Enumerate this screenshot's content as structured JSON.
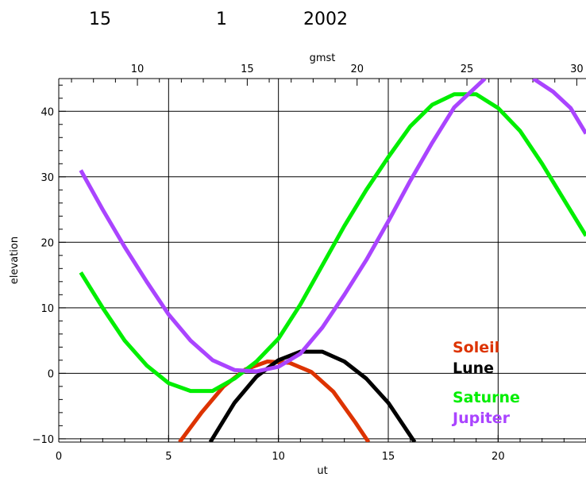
{
  "header": {
    "day": "15",
    "month": "1",
    "year": "2002"
  },
  "chart_data": {
    "type": "line",
    "xlabel": "ut",
    "ylabel": "elevation",
    "top_axis_label": "gmst",
    "xlim": [
      0,
      24
    ],
    "ylim": [
      -10.5,
      45
    ],
    "x_ticks": [
      0,
      5,
      10,
      15,
      20
    ],
    "y_ticks": [
      -10,
      0,
      10,
      20,
      30,
      40
    ],
    "top_ticks": [
      10,
      15,
      20,
      25,
      30
    ],
    "top_offset": 6.42,
    "grid": true,
    "legend_position": "bottom-right",
    "series": [
      {
        "name": "Soleil",
        "color": "#dd3300",
        "x": [
          5.5,
          6.5,
          7.5,
          8.5,
          9.5,
          10.5,
          11.5,
          12.5,
          13.5,
          14.1
        ],
        "y": [
          -10.5,
          -6.0,
          -2.0,
          0.6,
          1.8,
          1.6,
          0.2,
          -2.8,
          -7.5,
          -10.5
        ]
      },
      {
        "name": "Lune",
        "color": "#000000",
        "x": [
          6.9,
          8,
          9,
          10,
          11,
          12,
          13,
          14,
          15,
          16.2
        ],
        "y": [
          -10.5,
          -4.5,
          -0.5,
          2.0,
          3.3,
          3.3,
          1.8,
          -0.8,
          -4.5,
          -10.5
        ]
      },
      {
        "name": "Saturne",
        "color": "#00ee00",
        "x": [
          1,
          2,
          3,
          4,
          5,
          6,
          7,
          8,
          9,
          10,
          11,
          12,
          13,
          14,
          15,
          16,
          17,
          18,
          19,
          20,
          21,
          22,
          23,
          24
        ],
        "y": [
          15.4,
          10.0,
          5.0,
          1.2,
          -1.5,
          -2.7,
          -2.7,
          -0.8,
          1.8,
          5.3,
          10.5,
          16.5,
          22.5,
          28.0,
          33.0,
          37.7,
          41.0,
          42.6,
          42.6,
          40.5,
          37.0,
          32.0,
          26.5,
          21.0
        ]
      },
      {
        "name": "Jupiter",
        "color": "#aa44ff",
        "x": [
          1,
          2,
          3,
          4,
          5,
          6,
          7,
          8,
          9,
          10,
          11,
          12,
          13,
          14,
          15,
          16,
          17,
          18,
          19.4
        ],
        "y": [
          31.0,
          25.0,
          19.3,
          14.0,
          9.0,
          5.0,
          2.0,
          0.5,
          0.3,
          1.0,
          3.0,
          7.0,
          12.0,
          17.3,
          23.2,
          29.4,
          35.2,
          40.6,
          45.0
        ]
      },
      {
        "name": "Jupiter",
        "color": "#aa44ff",
        "x": [
          21.6,
          22.5,
          23.3,
          24
        ],
        "y": [
          45.0,
          43.0,
          40.5,
          36.6
        ]
      }
    ],
    "legend": [
      {
        "label": "Soleil",
        "color": "#dd3300"
      },
      {
        "label": "Lune",
        "color": "#000000"
      },
      {
        "label": "Saturne",
        "color": "#00ee00"
      },
      {
        "label": "Jupiter",
        "color": "#aa44ff"
      }
    ]
  }
}
